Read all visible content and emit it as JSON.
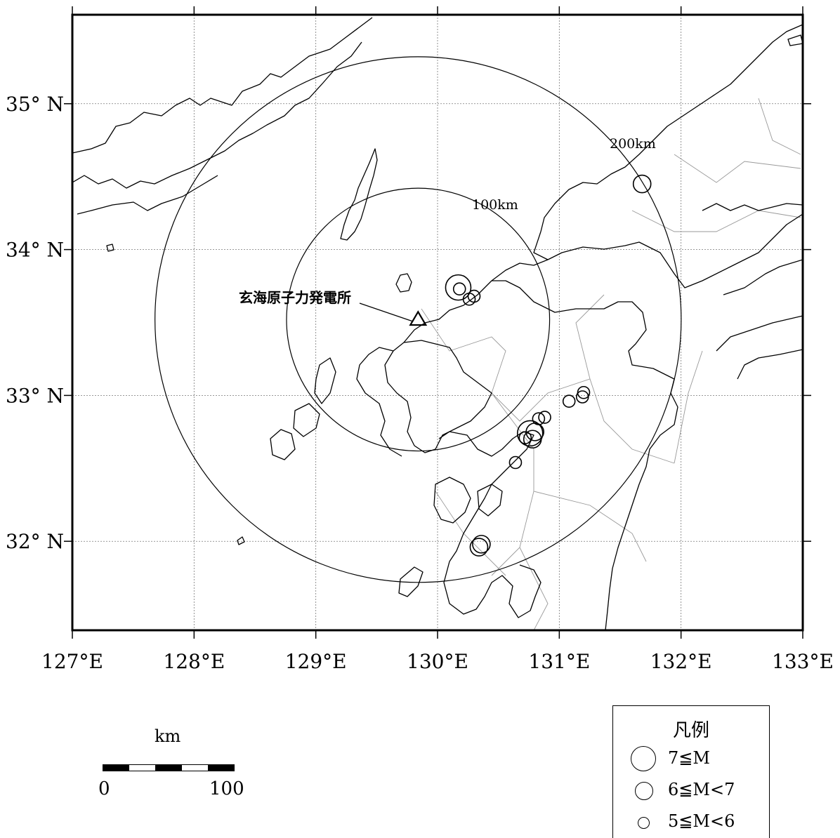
{
  "map": {
    "lon_labels": [
      "127°E",
      "128°E",
      "129°E",
      "130°E",
      "131°E",
      "132°E",
      "133°E"
    ],
    "lat_labels": [
      "35° N",
      "34° N",
      "33° N",
      "32° N"
    ],
    "ring_labels": {
      "inner": "100km",
      "outer": "200km"
    },
    "plant_label": "玄海原子力発電所",
    "plant": {
      "lon": 129.84,
      "lat": 33.52
    },
    "earthquakes": [
      {
        "lon": 131.68,
        "lat": 34.45,
        "class": "M6-7"
      },
      {
        "lon": 130.17,
        "lat": 33.74,
        "class": "M7"
      },
      {
        "lon": 130.18,
        "lat": 33.73,
        "class": "M5-6"
      },
      {
        "lon": 130.3,
        "lat": 33.68,
        "class": "M5-6"
      },
      {
        "lon": 130.26,
        "lat": 33.66,
        "class": "M5-6"
      },
      {
        "lon": 131.2,
        "lat": 33.02,
        "class": "M5-6"
      },
      {
        "lon": 131.19,
        "lat": 32.99,
        "class": "M5-6"
      },
      {
        "lon": 131.08,
        "lat": 32.96,
        "class": "M5-6"
      },
      {
        "lon": 130.83,
        "lat": 32.84,
        "class": "M5-6"
      },
      {
        "lon": 130.88,
        "lat": 32.85,
        "class": "M5-6"
      },
      {
        "lon": 130.76,
        "lat": 32.74,
        "class": "M7"
      },
      {
        "lon": 130.8,
        "lat": 32.75,
        "class": "M6-7"
      },
      {
        "lon": 130.78,
        "lat": 32.7,
        "class": "M6-7"
      },
      {
        "lon": 130.72,
        "lat": 32.71,
        "class": "M5-6"
      },
      {
        "lon": 130.64,
        "lat": 32.54,
        "class": "M5-6"
      },
      {
        "lon": 130.34,
        "lat": 31.96,
        "class": "M6-7"
      },
      {
        "lon": 130.36,
        "lat": 31.98,
        "class": "M6-7"
      }
    ]
  },
  "scale": {
    "unit": "km",
    "start": "0",
    "end": "100"
  },
  "legend": {
    "title": "凡例",
    "items": [
      {
        "label": "7≦M",
        "class": "M7"
      },
      {
        "label": "6≦M<7",
        "class": "M6-7"
      },
      {
        "label": "5≦M<6",
        "class": "M5-6"
      }
    ]
  }
}
